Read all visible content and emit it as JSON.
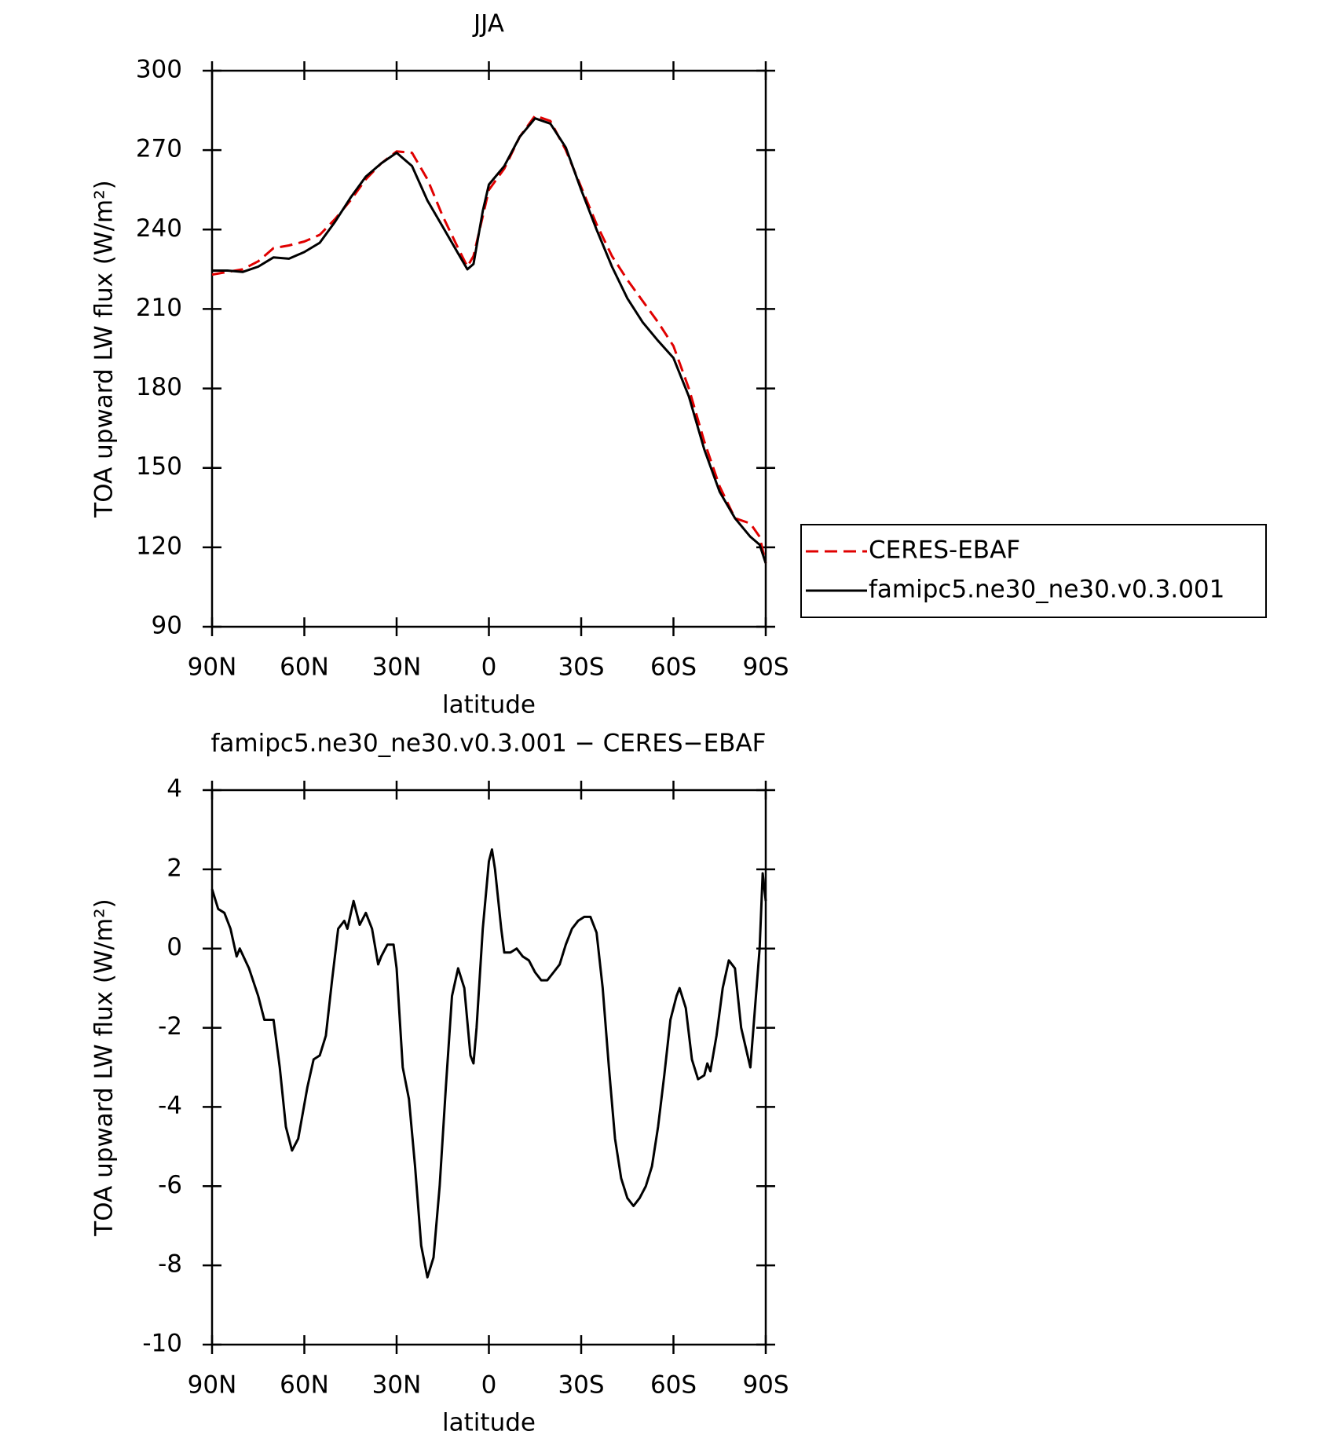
{
  "chart_data": [
    {
      "type": "line",
      "title": "JJA",
      "xlabel": "latitude",
      "ylabel": "TOA upward LW flux (W/m²)",
      "x": [
        90,
        85,
        80,
        75,
        70,
        65,
        60,
        55,
        50,
        45,
        40,
        35,
        30,
        25,
        20,
        15,
        10,
        7,
        5,
        2,
        0,
        -5,
        -10,
        -15,
        -20,
        -25,
        -30,
        -35,
        -40,
        -45,
        -50,
        -55,
        -60,
        -65,
        -70,
        -75,
        -80,
        -85,
        -88,
        -90
      ],
      "series": [
        {
          "name": "CERES-EBAF",
          "color": "#e00000",
          "dashed": true,
          "values": [
            223,
            224,
            225,
            228,
            233,
            234,
            235.5,
            238,
            244,
            251,
            259,
            265,
            269.5,
            269,
            259,
            245,
            233,
            226,
            230,
            245,
            255,
            263,
            275,
            283,
            281,
            270,
            256,
            242,
            230,
            221,
            213,
            205,
            196,
            180,
            160,
            143,
            131,
            129,
            124,
            114
          ]
        },
        {
          "name": "famipc5.ne30_ne30.v0.3.001",
          "color": "#000000",
          "dashed": false,
          "values": [
            224.5,
            224.5,
            224,
            226,
            229.5,
            229,
            231.5,
            235,
            243,
            252,
            260,
            265,
            269,
            264,
            251,
            241,
            231,
            225,
            227,
            247,
            257,
            264,
            275,
            282,
            280,
            271,
            255,
            240,
            226,
            214,
            205,
            198,
            191.5,
            177,
            157,
            141,
            131,
            124,
            121,
            114
          ]
        }
      ],
      "xlim": [
        90,
        -90
      ],
      "xticks": [
        {
          "value": 90,
          "label": "90N"
        },
        {
          "value": 60,
          "label": "60N"
        },
        {
          "value": 30,
          "label": "30N"
        },
        0,
        {
          "value": -30,
          "label": "30S"
        },
        {
          "value": -60,
          "label": "60S"
        },
        {
          "value": -90,
          "label": "90S"
        }
      ],
      "ylim": [
        90,
        300
      ],
      "yticks": [
        90,
        120,
        150,
        180,
        210,
        240,
        270,
        300
      ],
      "legend": "right"
    },
    {
      "type": "line",
      "title": "famipc5.ne30_ne30.v0.3.001 − CERES−EBAF",
      "xlabel": "latitude",
      "ylabel": "TOA upward LW flux (W/m²)",
      "x": [
        90,
        88,
        86,
        84,
        82,
        81,
        78,
        75,
        73,
        70,
        68,
        66,
        64,
        62,
        59,
        57,
        55,
        53,
        51,
        49,
        47,
        46,
        44,
        42,
        40,
        38,
        36,
        35,
        33,
        31,
        30,
        28,
        26,
        24,
        22,
        20,
        18,
        16,
        14,
        12,
        10,
        8,
        6,
        5,
        4,
        2,
        0,
        -1,
        -2,
        -4,
        -5,
        -7,
        -9,
        -11,
        -13,
        -15,
        -17,
        -19,
        -21,
        -23,
        -25,
        -27,
        -29,
        -31,
        -33,
        -35,
        -37,
        -39,
        -41,
        -43,
        -45,
        -47,
        -49,
        -51,
        -53,
        -55,
        -57,
        -59,
        -61,
        -62,
        -64,
        -66,
        -68,
        -70,
        -71,
        -72,
        -74,
        -76,
        -78,
        -80,
        -82,
        -85,
        -87,
        -88,
        -89,
        -90
      ],
      "series": [
        {
          "color": "#000000",
          "dashed": false,
          "values": [
            1.5,
            1.0,
            0.9,
            0.5,
            -0.2,
            0.0,
            -0.5,
            -1.2,
            -1.8,
            -1.8,
            -3.0,
            -4.5,
            -5.1,
            -4.8,
            -3.5,
            -2.8,
            -2.7,
            -2.2,
            -0.8,
            0.5,
            0.7,
            0.5,
            1.2,
            0.6,
            0.9,
            0.5,
            -0.4,
            -0.2,
            0.1,
            0.1,
            -0.5,
            -3.0,
            -3.8,
            -5.5,
            -7.5,
            -8.3,
            -7.8,
            -6.0,
            -3.5,
            -1.2,
            -0.5,
            -1.0,
            -2.7,
            -2.9,
            -2.0,
            0.5,
            2.2,
            2.5,
            2.0,
            0.5,
            -0.1,
            -0.1,
            0.0,
            -0.2,
            -0.3,
            -0.6,
            -0.8,
            -0.8,
            -0.6,
            -0.4,
            0.1,
            0.5,
            0.7,
            0.8,
            0.8,
            0.4,
            -1.0,
            -3.0,
            -4.8,
            -5.8,
            -6.3,
            -6.5,
            -6.3,
            -6.0,
            -5.5,
            -4.5,
            -3.2,
            -1.8,
            -1.2,
            -1.0,
            -1.5,
            -2.8,
            -3.3,
            -3.2,
            -2.9,
            -3.1,
            -2.2,
            -1.0,
            -0.3,
            -0.5,
            -2.0,
            -3.0,
            -1.0,
            0.0,
            1.9,
            1.2
          ]
        }
      ],
      "xlim": [
        90,
        -90
      ],
      "xticks": [
        {
          "value": 90,
          "label": "90N"
        },
        {
          "value": 60,
          "label": "60N"
        },
        {
          "value": 30,
          "label": "30N"
        },
        0,
        {
          "value": -30,
          "label": "30S"
        },
        {
          "value": -60,
          "label": "60S"
        },
        {
          "value": -90,
          "label": "90S"
        }
      ],
      "ylim": [
        -10,
        4
      ],
      "yticks": [
        -10,
        -8,
        -6,
        -4,
        -2,
        0,
        2,
        4
      ]
    }
  ]
}
